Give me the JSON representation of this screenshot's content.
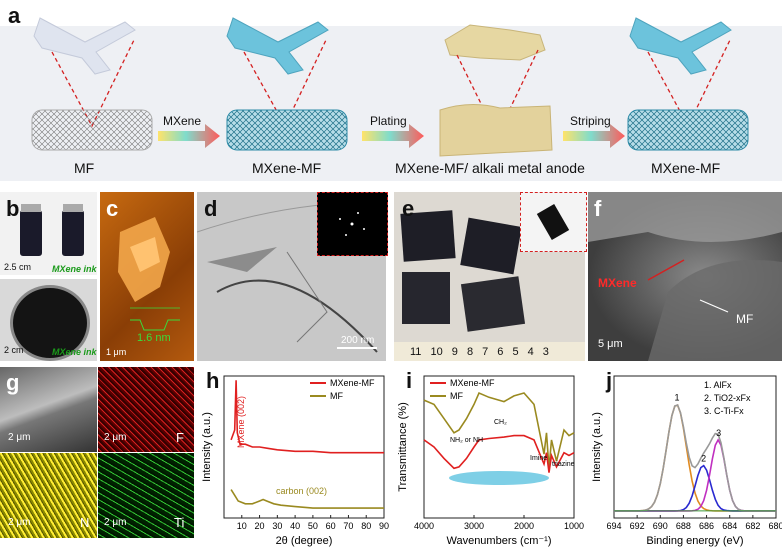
{
  "labels": {
    "a": "a",
    "b": "b",
    "c": "c",
    "d": "d",
    "e": "e",
    "f": "f",
    "g": "g",
    "h": "h",
    "i": "i",
    "j": "j"
  },
  "panel_a": {
    "stages": [
      "MF",
      "MXene-MF",
      "MXene-MF/ alkali metal anode",
      "MXene-MF"
    ],
    "arrows": [
      "MXene",
      "Plating",
      "Striping"
    ]
  },
  "panel_b": {
    "scale1": "2.5 cm",
    "ink1": "MXene ink",
    "scale2": "2 cm",
    "ink2": "MXene ink"
  },
  "panel_c": {
    "height": "1.6 nm",
    "scale": "1 μm"
  },
  "panel_d": {
    "scale": "200 nm"
  },
  "panel_e": {
    "ruler": "11 10 9 8 7 6 5 4 3"
  },
  "panel_f": {
    "mxene": "MXene",
    "mf": "MF",
    "scale": "5 μm"
  },
  "panel_g": {
    "scale": "2 μm",
    "elements": [
      "F",
      "N",
      "Ti"
    ]
  },
  "colors": {
    "mxene_mf": "#e02020",
    "mf": "#9a8a20",
    "accent": "#d42020"
  },
  "chart_data": [
    {
      "panel": "h",
      "type": "line",
      "xlabel": "2θ (degree)",
      "ylabel": "Intensity (a.u.)",
      "xlim": [
        0,
        90
      ],
      "xticks": [
        10,
        20,
        30,
        40,
        50,
        60,
        70,
        80,
        90
      ],
      "legend": [
        "MXene-MF",
        "MF"
      ],
      "annotations": [
        "MXene (002)",
        "carbon (002)"
      ],
      "series": [
        {
          "name": "MXene-MF",
          "x": [
            4,
            6,
            6.8,
            7.5,
            9,
            12,
            16,
            20,
            25,
            30,
            40,
            50,
            60,
            70,
            80,
            90
          ],
          "y": [
            0.55,
            0.62,
            0.97,
            0.6,
            0.52,
            0.52,
            0.5,
            0.5,
            0.49,
            0.48,
            0.47,
            0.47,
            0.46,
            0.46,
            0.46,
            0.46
          ]
        },
        {
          "name": "MF",
          "x": [
            4,
            6,
            8,
            12,
            16,
            20,
            22,
            24,
            28,
            32,
            40,
            50,
            60,
            70,
            80,
            90
          ],
          "y": [
            0.2,
            0.16,
            0.12,
            0.1,
            0.1,
            0.12,
            0.13,
            0.12,
            0.1,
            0.09,
            0.08,
            0.07,
            0.07,
            0.07,
            0.07,
            0.07
          ]
        }
      ]
    },
    {
      "panel": "i",
      "type": "line",
      "xlabel": "Wavenumbers (cm⁻¹)",
      "ylabel": "Transmittance (%)",
      "xlim": [
        4000,
        1000
      ],
      "xticks": [
        4000,
        3000,
        2000,
        1000
      ],
      "legend": [
        "MXene-MF",
        "MF"
      ],
      "annotations": [
        "CH₂",
        "NH₂ or NH",
        "Imine",
        "triazine"
      ],
      "series": [
        {
          "name": "MF",
          "x": [
            4000,
            3800,
            3600,
            3400,
            3300,
            3150,
            3000,
            2900,
            2700,
            2400,
            2200,
            2000,
            1800,
            1600,
            1550,
            1500,
            1450,
            1350,
            1200,
            1100,
            1000
          ],
          "y": [
            0.83,
            0.8,
            0.7,
            0.6,
            0.62,
            0.7,
            0.8,
            0.88,
            0.85,
            0.82,
            0.86,
            0.88,
            0.8,
            0.45,
            0.6,
            0.35,
            0.55,
            0.4,
            0.62,
            0.58,
            0.6
          ]
        },
        {
          "name": "MXene-MF",
          "x": [
            4000,
            3800,
            3600,
            3400,
            3300,
            3150,
            3000,
            2900,
            2700,
            2400,
            2200,
            2000,
            1800,
            1600,
            1550,
            1500,
            1450,
            1350,
            1200,
            1100,
            1000
          ],
          "y": [
            0.55,
            0.5,
            0.42,
            0.35,
            0.36,
            0.42,
            0.5,
            0.55,
            0.56,
            0.57,
            0.58,
            0.58,
            0.55,
            0.38,
            0.46,
            0.32,
            0.44,
            0.36,
            0.46,
            0.44,
            0.46
          ]
        }
      ]
    },
    {
      "panel": "j",
      "type": "line",
      "xlabel": "Binding energy (eV)",
      "ylabel": "Intensity (a.u.)",
      "xlim": [
        694,
        680
      ],
      "xticks": [
        694,
        692,
        690,
        688,
        686,
        684,
        682,
        680
      ],
      "legend": [
        "1. AlFx",
        "2. TiO2-xFx",
        "3. C-Ti-Fx"
      ],
      "peak_labels": [
        "1",
        "2",
        "3"
      ],
      "peaks": [
        {
          "center": 688.6,
          "height": 0.75,
          "width": 1.2
        },
        {
          "center": 686.3,
          "height": 0.32,
          "width": 0.9
        },
        {
          "center": 685.0,
          "height": 0.5,
          "width": 0.9
        }
      ]
    }
  ]
}
